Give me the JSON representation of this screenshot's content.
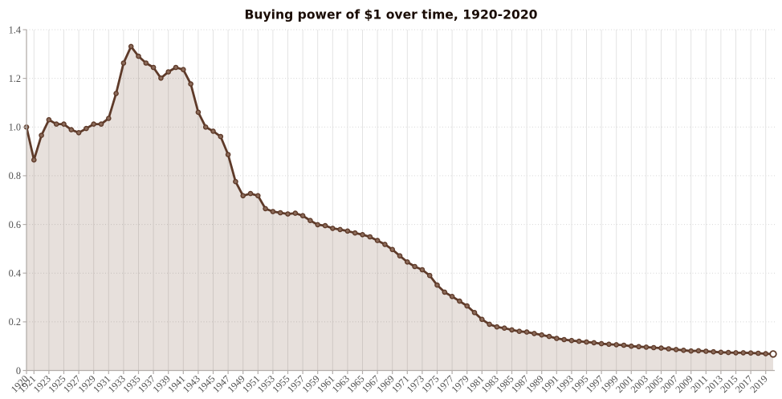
{
  "chart": {
    "title": "Buying power of $1 over time, 1920-2020"
  },
  "chart_data": {
    "type": "area",
    "title": "Buying power of $1 over time, 1920-2020",
    "xlabel": "",
    "ylabel": "",
    "legend": "none",
    "grid": {
      "vertical": "solid",
      "horizontal": "dotted"
    },
    "marker": "open-circle",
    "last_point_marker": "large-open-circle",
    "xlim": [
      1920,
      2020
    ],
    "ylim": [
      0,
      1.4
    ],
    "y_ticks": [
      0,
      0.2,
      0.4,
      0.6,
      0.8,
      1.0,
      1.2,
      1.4
    ],
    "y_tick_labels": [
      "0",
      "0.2",
      "0.4",
      "0.6",
      "0.8",
      "1.0",
      "1.2",
      "1.4"
    ],
    "x_tick_labels": [
      "1920",
      "1921",
      "1923",
      "1925",
      "1927",
      "1929",
      "1931",
      "1933",
      "1935",
      "1937",
      "1939",
      "1941",
      "1943",
      "1945",
      "1947",
      "1949",
      "1951",
      "1953",
      "1955",
      "1957",
      "1959",
      "1961",
      "1963",
      "1965",
      "1967",
      "1969",
      "1971",
      "1973",
      "1975",
      "1977",
      "1979",
      "1981",
      "1983",
      "1985",
      "1987",
      "1989",
      "1991",
      "1993",
      "1995",
      "1997",
      "1999",
      "2001",
      "2003",
      "2005",
      "2007",
      "2009",
      "2011",
      "2013",
      "2015",
      "2017",
      "2019"
    ],
    "years": [
      1920,
      1921,
      1922,
      1923,
      1924,
      1925,
      1926,
      1927,
      1928,
      1929,
      1930,
      1931,
      1932,
      1933,
      1934,
      1935,
      1936,
      1937,
      1938,
      1939,
      1940,
      1941,
      1942,
      1943,
      1944,
      1945,
      1946,
      1947,
      1948,
      1949,
      1950,
      1951,
      1952,
      1953,
      1954,
      1955,
      1956,
      1957,
      1958,
      1959,
      1960,
      1961,
      1962,
      1963,
      1964,
      1965,
      1966,
      1967,
      1968,
      1969,
      1970,
      1971,
      1972,
      1973,
      1974,
      1975,
      1976,
      1977,
      1978,
      1979,
      1980,
      1981,
      1982,
      1983,
      1984,
      1985,
      1986,
      1987,
      1988,
      1989,
      1990,
      1991,
      1992,
      1993,
      1994,
      1995,
      1996,
      1997,
      1998,
      1999,
      2000,
      2001,
      2002,
      2003,
      2004,
      2005,
      2006,
      2007,
      2008,
      2009,
      2010,
      2011,
      2012,
      2013,
      2014,
      2015,
      2016,
      2017,
      2018,
      2019,
      2020
    ],
    "values": [
      1.0,
      0.865,
      0.966,
      1.03,
      1.012,
      1.012,
      0.989,
      0.977,
      0.994,
      1.012,
      1.012,
      1.036,
      1.138,
      1.263,
      1.331,
      1.291,
      1.263,
      1.245,
      1.201,
      1.227,
      1.245,
      1.236,
      1.177,
      1.061,
      1.0,
      0.983,
      0.961,
      0.887,
      0.776,
      0.718,
      0.727,
      0.718,
      0.665,
      0.653,
      0.648,
      0.643,
      0.646,
      0.636,
      0.616,
      0.599,
      0.595,
      0.584,
      0.579,
      0.573,
      0.565,
      0.558,
      0.549,
      0.534,
      0.518,
      0.497,
      0.471,
      0.446,
      0.427,
      0.414,
      0.39,
      0.351,
      0.322,
      0.304,
      0.285,
      0.265,
      0.238,
      0.21,
      0.19,
      0.179,
      0.174,
      0.167,
      0.161,
      0.158,
      0.152,
      0.146,
      0.14,
      0.132,
      0.127,
      0.123,
      0.12,
      0.117,
      0.114,
      0.11,
      0.108,
      0.106,
      0.104,
      0.1,
      0.098,
      0.096,
      0.094,
      0.092,
      0.089,
      0.086,
      0.083,
      0.08,
      0.081,
      0.079,
      0.077,
      0.075,
      0.074,
      0.073,
      0.073,
      0.072,
      0.071,
      0.069,
      0.068
    ]
  },
  "colors": {
    "background": "#ffffff",
    "line": "#5e3a29",
    "area_fill": "rgba(105,65,40,0.16)",
    "marker_stroke": "#5e3a29",
    "marker_fill": "#8b6a59",
    "last_marker_fill": "#ffffff",
    "grid_vertical": "#e3e3e3",
    "grid_horizontal": "#d6d6d6",
    "axis_line": "#b3aeab",
    "tick_text": "#4f4f4f",
    "title_text": "#1a0c05"
  }
}
